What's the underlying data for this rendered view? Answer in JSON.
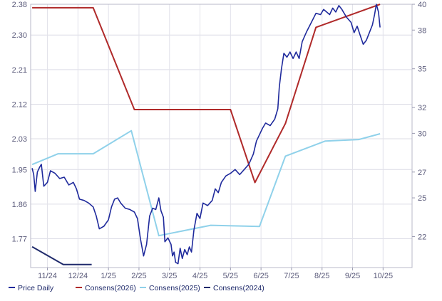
{
  "chart_data": {
    "type": "line",
    "grid": true,
    "left_axis": {
      "ticks": [
        2.38,
        2.3,
        2.21,
        2.12,
        2.03,
        1.95,
        1.86,
        1.77
      ],
      "ylim": [
        1.695,
        2.38
      ]
    },
    "right_axis": {
      "ticks": [
        40,
        38,
        35,
        32,
        30,
        27,
        25,
        22
      ],
      "ylim": [
        19.6,
        40
      ]
    },
    "x_ticks": [
      "11/24",
      "12/24",
      "1/25",
      "2/25",
      "3/25",
      "4/25",
      "5/25",
      "6/25",
      "7/25",
      "8/25",
      "9/25",
      "10/25"
    ],
    "x_ticks_idx": [
      0,
      1,
      2,
      3,
      4,
      5,
      6,
      7,
      8,
      9,
      10,
      11
    ],
    "xlim": [
      -0.55,
      11.95
    ],
    "legend_position": "bottom",
    "series": [
      {
        "name": "Price Daily",
        "axis": "right",
        "color": "#1f2a9c",
        "points": [
          [
            -0.5,
            27.3
          ],
          [
            -0.45,
            26.8
          ],
          [
            -0.4,
            25.5
          ],
          [
            -0.33,
            27.0
          ],
          [
            -0.25,
            27.4
          ],
          [
            -0.2,
            27.6
          ],
          [
            -0.12,
            25.9
          ],
          [
            0.0,
            26.2
          ],
          [
            0.1,
            27.1
          ],
          [
            0.25,
            26.9
          ],
          [
            0.4,
            26.5
          ],
          [
            0.55,
            26.6
          ],
          [
            0.7,
            26.0
          ],
          [
            0.85,
            26.2
          ],
          [
            0.95,
            25.7
          ],
          [
            1.05,
            24.9
          ],
          [
            1.2,
            24.8
          ],
          [
            1.35,
            24.6
          ],
          [
            1.5,
            24.3
          ],
          [
            1.6,
            23.6
          ],
          [
            1.7,
            22.6
          ],
          [
            1.85,
            22.8
          ],
          [
            2.0,
            23.3
          ],
          [
            2.1,
            24.3
          ],
          [
            2.2,
            24.9
          ],
          [
            2.3,
            25.0
          ],
          [
            2.4,
            24.6
          ],
          [
            2.55,
            24.2
          ],
          [
            2.7,
            24.1
          ],
          [
            2.85,
            23.9
          ],
          [
            2.95,
            23.4
          ],
          [
            3.05,
            21.8
          ],
          [
            3.15,
            20.5
          ],
          [
            3.25,
            21.4
          ],
          [
            3.35,
            23.6
          ],
          [
            3.45,
            24.2
          ],
          [
            3.55,
            24.1
          ],
          [
            3.65,
            25.0
          ],
          [
            3.72,
            24.0
          ],
          [
            3.8,
            23.5
          ],
          [
            3.85,
            21.6
          ],
          [
            3.95,
            21.9
          ],
          [
            4.05,
            21.4
          ],
          [
            4.1,
            20.5
          ],
          [
            4.15,
            20.8
          ],
          [
            4.2,
            20.0
          ],
          [
            4.28,
            19.9
          ],
          [
            4.35,
            21.1
          ],
          [
            4.42,
            20.3
          ],
          [
            4.5,
            21.0
          ],
          [
            4.58,
            20.6
          ],
          [
            4.65,
            21.2
          ],
          [
            4.72,
            20.8
          ],
          [
            4.8,
            22.5
          ],
          [
            4.9,
            23.8
          ],
          [
            5.0,
            23.4
          ],
          [
            5.1,
            24.6
          ],
          [
            5.25,
            24.4
          ],
          [
            5.4,
            24.8
          ],
          [
            5.5,
            25.7
          ],
          [
            5.6,
            25.4
          ],
          [
            5.7,
            26.2
          ],
          [
            5.85,
            26.7
          ],
          [
            6.0,
            26.9
          ],
          [
            6.15,
            27.2
          ],
          [
            6.3,
            26.8
          ],
          [
            6.45,
            27.2
          ],
          [
            6.6,
            27.6
          ],
          [
            6.75,
            28.4
          ],
          [
            6.85,
            29.4
          ],
          [
            6.95,
            29.9
          ],
          [
            7.05,
            30.4
          ],
          [
            7.15,
            30.8
          ],
          [
            7.3,
            30.6
          ],
          [
            7.45,
            31.1
          ],
          [
            7.55,
            31.9
          ],
          [
            7.6,
            33.6
          ],
          [
            7.67,
            35.0
          ],
          [
            7.75,
            36.2
          ],
          [
            7.85,
            35.9
          ],
          [
            7.95,
            36.3
          ],
          [
            8.05,
            35.8
          ],
          [
            8.15,
            36.3
          ],
          [
            8.25,
            35.8
          ],
          [
            8.35,
            37.1
          ],
          [
            8.5,
            37.9
          ],
          [
            8.65,
            38.6
          ],
          [
            8.8,
            39.3
          ],
          [
            8.95,
            39.2
          ],
          [
            9.05,
            39.6
          ],
          [
            9.15,
            39.4
          ],
          [
            9.25,
            39.2
          ],
          [
            9.35,
            39.7
          ],
          [
            9.45,
            39.4
          ],
          [
            9.55,
            39.9
          ],
          [
            9.65,
            39.6
          ],
          [
            9.8,
            39.0
          ],
          [
            9.95,
            38.6
          ],
          [
            10.05,
            37.8
          ],
          [
            10.15,
            38.3
          ],
          [
            10.25,
            37.6
          ],
          [
            10.35,
            36.9
          ],
          [
            10.45,
            37.2
          ],
          [
            10.55,
            37.8
          ],
          [
            10.65,
            38.4
          ],
          [
            10.72,
            39.2
          ],
          [
            10.78,
            40.0
          ],
          [
            10.85,
            39.4
          ],
          [
            10.9,
            38.2
          ]
        ]
      },
      {
        "name": "Consens(2026)",
        "axis": "left",
        "color": "#b02a2a",
        "points": [
          [
            -0.5,
            2.371
          ],
          [
            1.5,
            2.371
          ],
          [
            2.85,
            2.106
          ],
          [
            6.0,
            2.106
          ],
          [
            6.8,
            1.916
          ],
          [
            7.8,
            2.07
          ],
          [
            8.8,
            2.32
          ],
          [
            10.9,
            2.38
          ]
        ]
      },
      {
        "name": "Consens(2025)",
        "axis": "left",
        "color": "#8fd1ea",
        "points": [
          [
            -0.5,
            1.963
          ],
          [
            0.35,
            1.991
          ],
          [
            1.5,
            1.991
          ],
          [
            2.75,
            2.051
          ],
          [
            3.65,
            1.778
          ],
          [
            5.35,
            1.805
          ],
          [
            6.95,
            1.802
          ],
          [
            7.8,
            1.985
          ],
          [
            9.1,
            2.024
          ],
          [
            10.2,
            2.028
          ],
          [
            10.9,
            2.043
          ]
        ]
      },
      {
        "name": "Consens(2024)",
        "axis": "left",
        "color": "#1f2a6b",
        "points": [
          [
            -0.5,
            1.749
          ],
          [
            0.52,
            1.703
          ],
          [
            1.45,
            1.703
          ]
        ]
      }
    ]
  }
}
